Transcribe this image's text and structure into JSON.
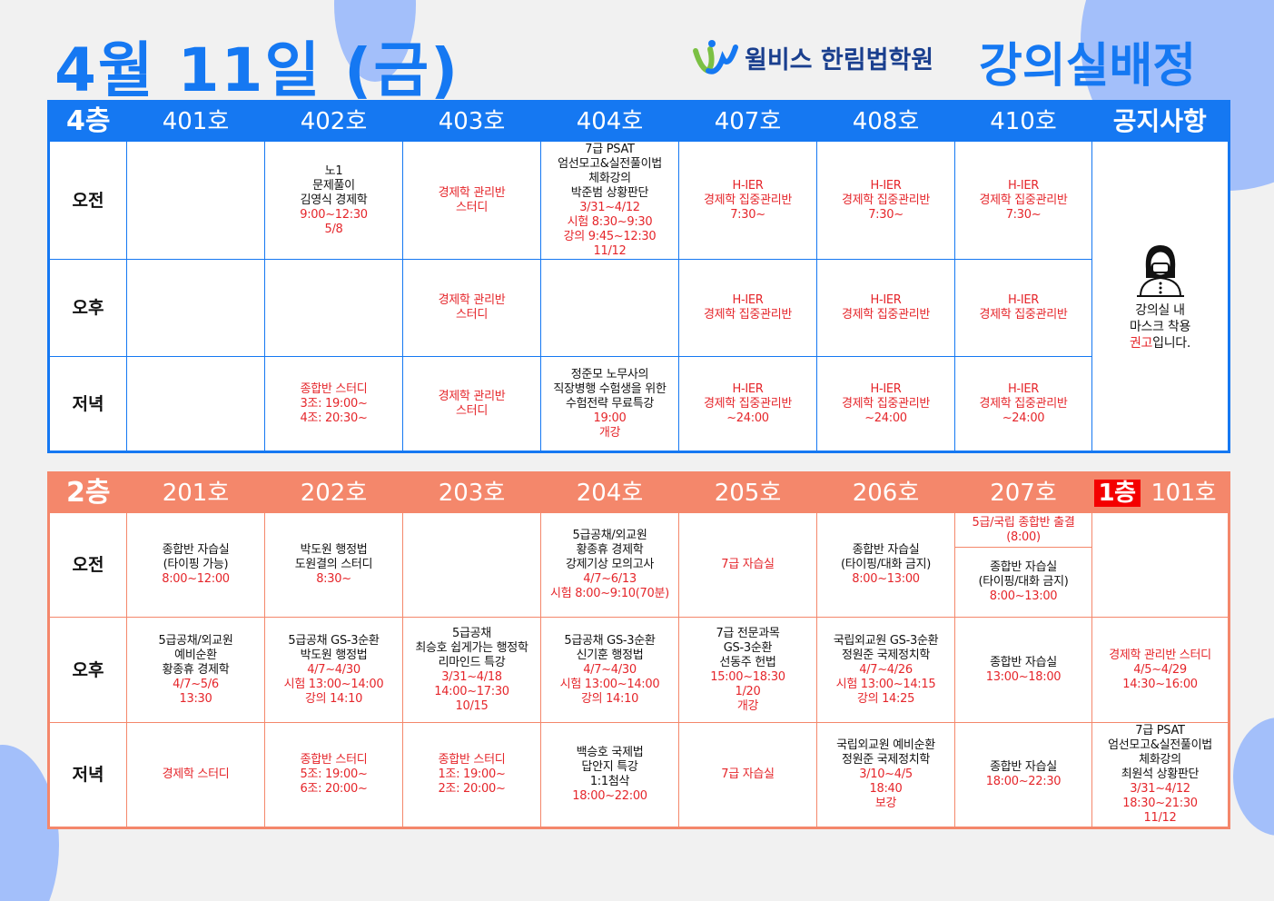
{
  "header": {
    "title": "4월 11일 (금)",
    "brand_name": "윌비스 한림법학원",
    "brand_title": "강의실배정"
  },
  "colors": {
    "accent_blue": "#1578f2",
    "accent_orange": "#f4876b",
    "text_red": "#e5262b"
  },
  "floor4": {
    "floor_label": "4층",
    "rooms": [
      "401호",
      "402호",
      "403호",
      "404호",
      "407호",
      "408호",
      "410호"
    ],
    "notice_label": "공지사항",
    "notice": {
      "icon": "masked-person-icon",
      "line1": "강의실 내",
      "line2": "마스크 착용",
      "line3_red": "권고",
      "line3_rest": "입니다."
    },
    "rows": [
      {
        "label": "오전",
        "cells": [
          [],
          [
            {
              "t": "노1"
            },
            {
              "t": "문제풀이"
            },
            {
              "t": "김영식 경제학"
            },
            {
              "t": "9:00~12:30",
              "red": true
            },
            {
              "t": "5/8",
              "red": true
            }
          ],
          [
            {
              "t": "경제학 관리반",
              "red": true
            },
            {
              "t": "스터디",
              "red": true
            }
          ],
          [
            {
              "t": "7급 PSAT"
            },
            {
              "t": "엄선모고&실전풀이법"
            },
            {
              "t": "체화강의"
            },
            {
              "t": "박준범 상황판단"
            },
            {
              "t": "3/31~4/12",
              "red": true
            },
            {
              "t": "시험 8:30~9:30",
              "red": true
            },
            {
              "t": "강의 9:45~12:30",
              "red": true
            },
            {
              "t": "11/12",
              "red": true
            }
          ],
          [
            {
              "t": "H-IER",
              "red": true
            },
            {
              "t": "경제학 집중관리반",
              "red": true
            },
            {
              "t": "7:30~",
              "red": true
            }
          ],
          [
            {
              "t": "H-IER",
              "red": true
            },
            {
              "t": "경제학 집중관리반",
              "red": true
            },
            {
              "t": "7:30~",
              "red": true
            }
          ],
          [
            {
              "t": "H-IER",
              "red": true
            },
            {
              "t": "경제학 집중관리반",
              "red": true
            },
            {
              "t": "7:30~",
              "red": true
            }
          ]
        ]
      },
      {
        "label": "오후",
        "cells": [
          [],
          [],
          [
            {
              "t": "경제학 관리반",
              "red": true
            },
            {
              "t": "스터디",
              "red": true
            }
          ],
          [],
          [
            {
              "t": "H-IER",
              "red": true
            },
            {
              "t": "경제학 집중관리반",
              "red": true
            }
          ],
          [
            {
              "t": "H-IER",
              "red": true
            },
            {
              "t": "경제학 집중관리반",
              "red": true
            }
          ],
          [
            {
              "t": "H-IER",
              "red": true
            },
            {
              "t": "경제학 집중관리반",
              "red": true
            }
          ]
        ]
      },
      {
        "label": "저녁",
        "cells": [
          [],
          [
            {
              "t": "종합반 스터디",
              "red": true
            },
            {
              "t": "3조: 19:00~",
              "red": true
            },
            {
              "t": "4조: 20:30~",
              "red": true
            }
          ],
          [
            {
              "t": "경제학 관리반",
              "red": true
            },
            {
              "t": "스터디",
              "red": true
            }
          ],
          [
            {
              "t": "정준모 노무사의"
            },
            {
              "t": "직장병행 수험생을 위한"
            },
            {
              "t": "수험전략 무료특강"
            },
            {
              "t": "19:00",
              "red": true
            },
            {
              "t": "개강",
              "red": true
            }
          ],
          [
            {
              "t": "H-IER",
              "red": true
            },
            {
              "t": "경제학 집중관리반",
              "red": true
            },
            {
              "t": "~24:00",
              "red": true
            }
          ],
          [
            {
              "t": "H-IER",
              "red": true
            },
            {
              "t": "경제학 집중관리반",
              "red": true
            },
            {
              "t": "~24:00",
              "red": true
            }
          ],
          [
            {
              "t": "H-IER",
              "red": true
            },
            {
              "t": "경제학 집중관리반",
              "red": true
            },
            {
              "t": "~24:00",
              "red": true
            }
          ]
        ]
      }
    ]
  },
  "floor2": {
    "floor_label": "2층",
    "rooms": [
      "201호",
      "202호",
      "203호",
      "204호",
      "205호",
      "206호",
      "207호"
    ],
    "floor1_label": "1층",
    "room101": "101호",
    "rows": [
      {
        "label": "오전",
        "cells": [
          [
            {
              "t": "종합반 자습실"
            },
            {
              "t": "(타이핑 가능)"
            },
            {
              "t": "8:00~12:00",
              "red": true
            }
          ],
          [
            {
              "t": "박도원 행정법"
            },
            {
              "t": "도원결의 스터디"
            },
            {
              "t": "8:30~",
              "red": true
            }
          ],
          [],
          [
            {
              "t": "5급공채/외교원"
            },
            {
              "t": "황종휴 경제학"
            },
            {
              "t": "강제기상 모의고사"
            },
            {
              "t": "4/7~6/13",
              "red": true
            },
            {
              "t": "시험 8:00~9:10(70분)",
              "red": true
            }
          ],
          [
            {
              "t": "7급 자습실",
              "red": true
            }
          ],
          [
            {
              "t": "종합반 자습실"
            },
            {
              "t": "(타이핑/대화 금지)"
            },
            {
              "t": "8:00~13:00",
              "red": true
            }
          ],
          [
            {
              "t": "종합반 자습실"
            },
            {
              "t": "(타이핑/대화 금지)"
            },
            {
              "t": "8:00~13:00",
              "red": true
            }
          ],
          []
        ],
        "room207_top": [
          {
            "t": "5급/국립 종합반 출결",
            "red": true
          },
          {
            "t": "(8:00)",
            "red": true
          }
        ]
      },
      {
        "label": "오후",
        "cells": [
          [
            {
              "t": "5급공채/외교원"
            },
            {
              "t": "예비순환"
            },
            {
              "t": "황종휴 경제학"
            },
            {
              "t": "4/7~5/6",
              "red": true
            },
            {
              "t": "13:30",
              "red": true
            }
          ],
          [
            {
              "t": "5급공채 GS-3순환"
            },
            {
              "t": "박도원 행정법"
            },
            {
              "t": "4/7~4/30",
              "red": true
            },
            {
              "t": "시험 13:00~14:00",
              "red": true
            },
            {
              "t": "강의 14:10",
              "red": true
            }
          ],
          [
            {
              "t": "5급공채"
            },
            {
              "t": "최승호 쉽게가는 행정학"
            },
            {
              "t": "리마인드 특강"
            },
            {
              "t": "3/31~4/18",
              "red": true
            },
            {
              "t": "14:00~17:30",
              "red": true
            },
            {
              "t": "10/15",
              "red": true
            }
          ],
          [
            {
              "t": "5급공채 GS-3순환"
            },
            {
              "t": "신기훈 행정법"
            },
            {
              "t": "4/7~4/30",
              "red": true
            },
            {
              "t": "시험 13:00~14:00",
              "red": true
            },
            {
              "t": "강의 14:10",
              "red": true
            }
          ],
          [
            {
              "t": "7급 전문과목"
            },
            {
              "t": "GS-3순환"
            },
            {
              "t": "선동주 헌법"
            },
            {
              "t": "15:00~18:30",
              "red": true
            },
            {
              "t": "1/20",
              "red": true
            },
            {
              "t": "개강",
              "red": true
            }
          ],
          [
            {
              "t": "국립외교원 GS-3순환"
            },
            {
              "t": "정원준 국제정치학"
            },
            {
              "t": "4/7~4/26",
              "red": true
            },
            {
              "t": "시험 13:00~14:15",
              "red": true
            },
            {
              "t": "강의 14:25",
              "red": true
            }
          ],
          [
            {
              "t": "종합반 자습실"
            },
            {
              "t": "13:00~18:00",
              "red": true
            }
          ],
          [
            {
              "t": "경제학 관리반 스터디",
              "red": true
            },
            {
              "t": "4/5~4/29",
              "red": true
            },
            {
              "t": "14:30~16:00",
              "red": true
            }
          ]
        ]
      },
      {
        "label": "저녁",
        "cells": [
          [
            {
              "t": "경제학 스터디",
              "red": true
            }
          ],
          [
            {
              "t": "종합반 스터디",
              "red": true
            },
            {
              "t": "5조: 19:00~",
              "red": true
            },
            {
              "t": "6조: 20:00~",
              "red": true
            }
          ],
          [
            {
              "t": "종합반 스터디",
              "red": true
            },
            {
              "t": "1조: 19:00~",
              "red": true
            },
            {
              "t": "2조: 20:00~",
              "red": true
            }
          ],
          [
            {
              "t": "백승호 국제법"
            },
            {
              "t": "답안지 특강"
            },
            {
              "t": "1:1첨삭"
            },
            {
              "t": "18:00~22:00",
              "red": true
            }
          ],
          [
            {
              "t": "7급 자습실",
              "red": true
            }
          ],
          [
            {
              "t": "국립외교원 예비순환"
            },
            {
              "t": "정원준 국제정치학"
            },
            {
              "t": "3/10~4/5",
              "red": true
            },
            {
              "t": "18:40",
              "red": true
            },
            {
              "t": "보강",
              "red": true
            }
          ],
          [
            {
              "t": "종합반 자습실"
            },
            {
              "t": "18:00~22:30",
              "red": true
            }
          ],
          [
            {
              "t": "7급 PSAT"
            },
            {
              "t": "엄선모고&실전풀이법"
            },
            {
              "t": "체화강의"
            },
            {
              "t": "최원석 상황판단"
            },
            {
              "t": "3/31~4/12",
              "red": true
            },
            {
              "t": "18:30~21:30",
              "red": true
            },
            {
              "t": "11/12",
              "red": true
            }
          ]
        ]
      }
    ]
  }
}
